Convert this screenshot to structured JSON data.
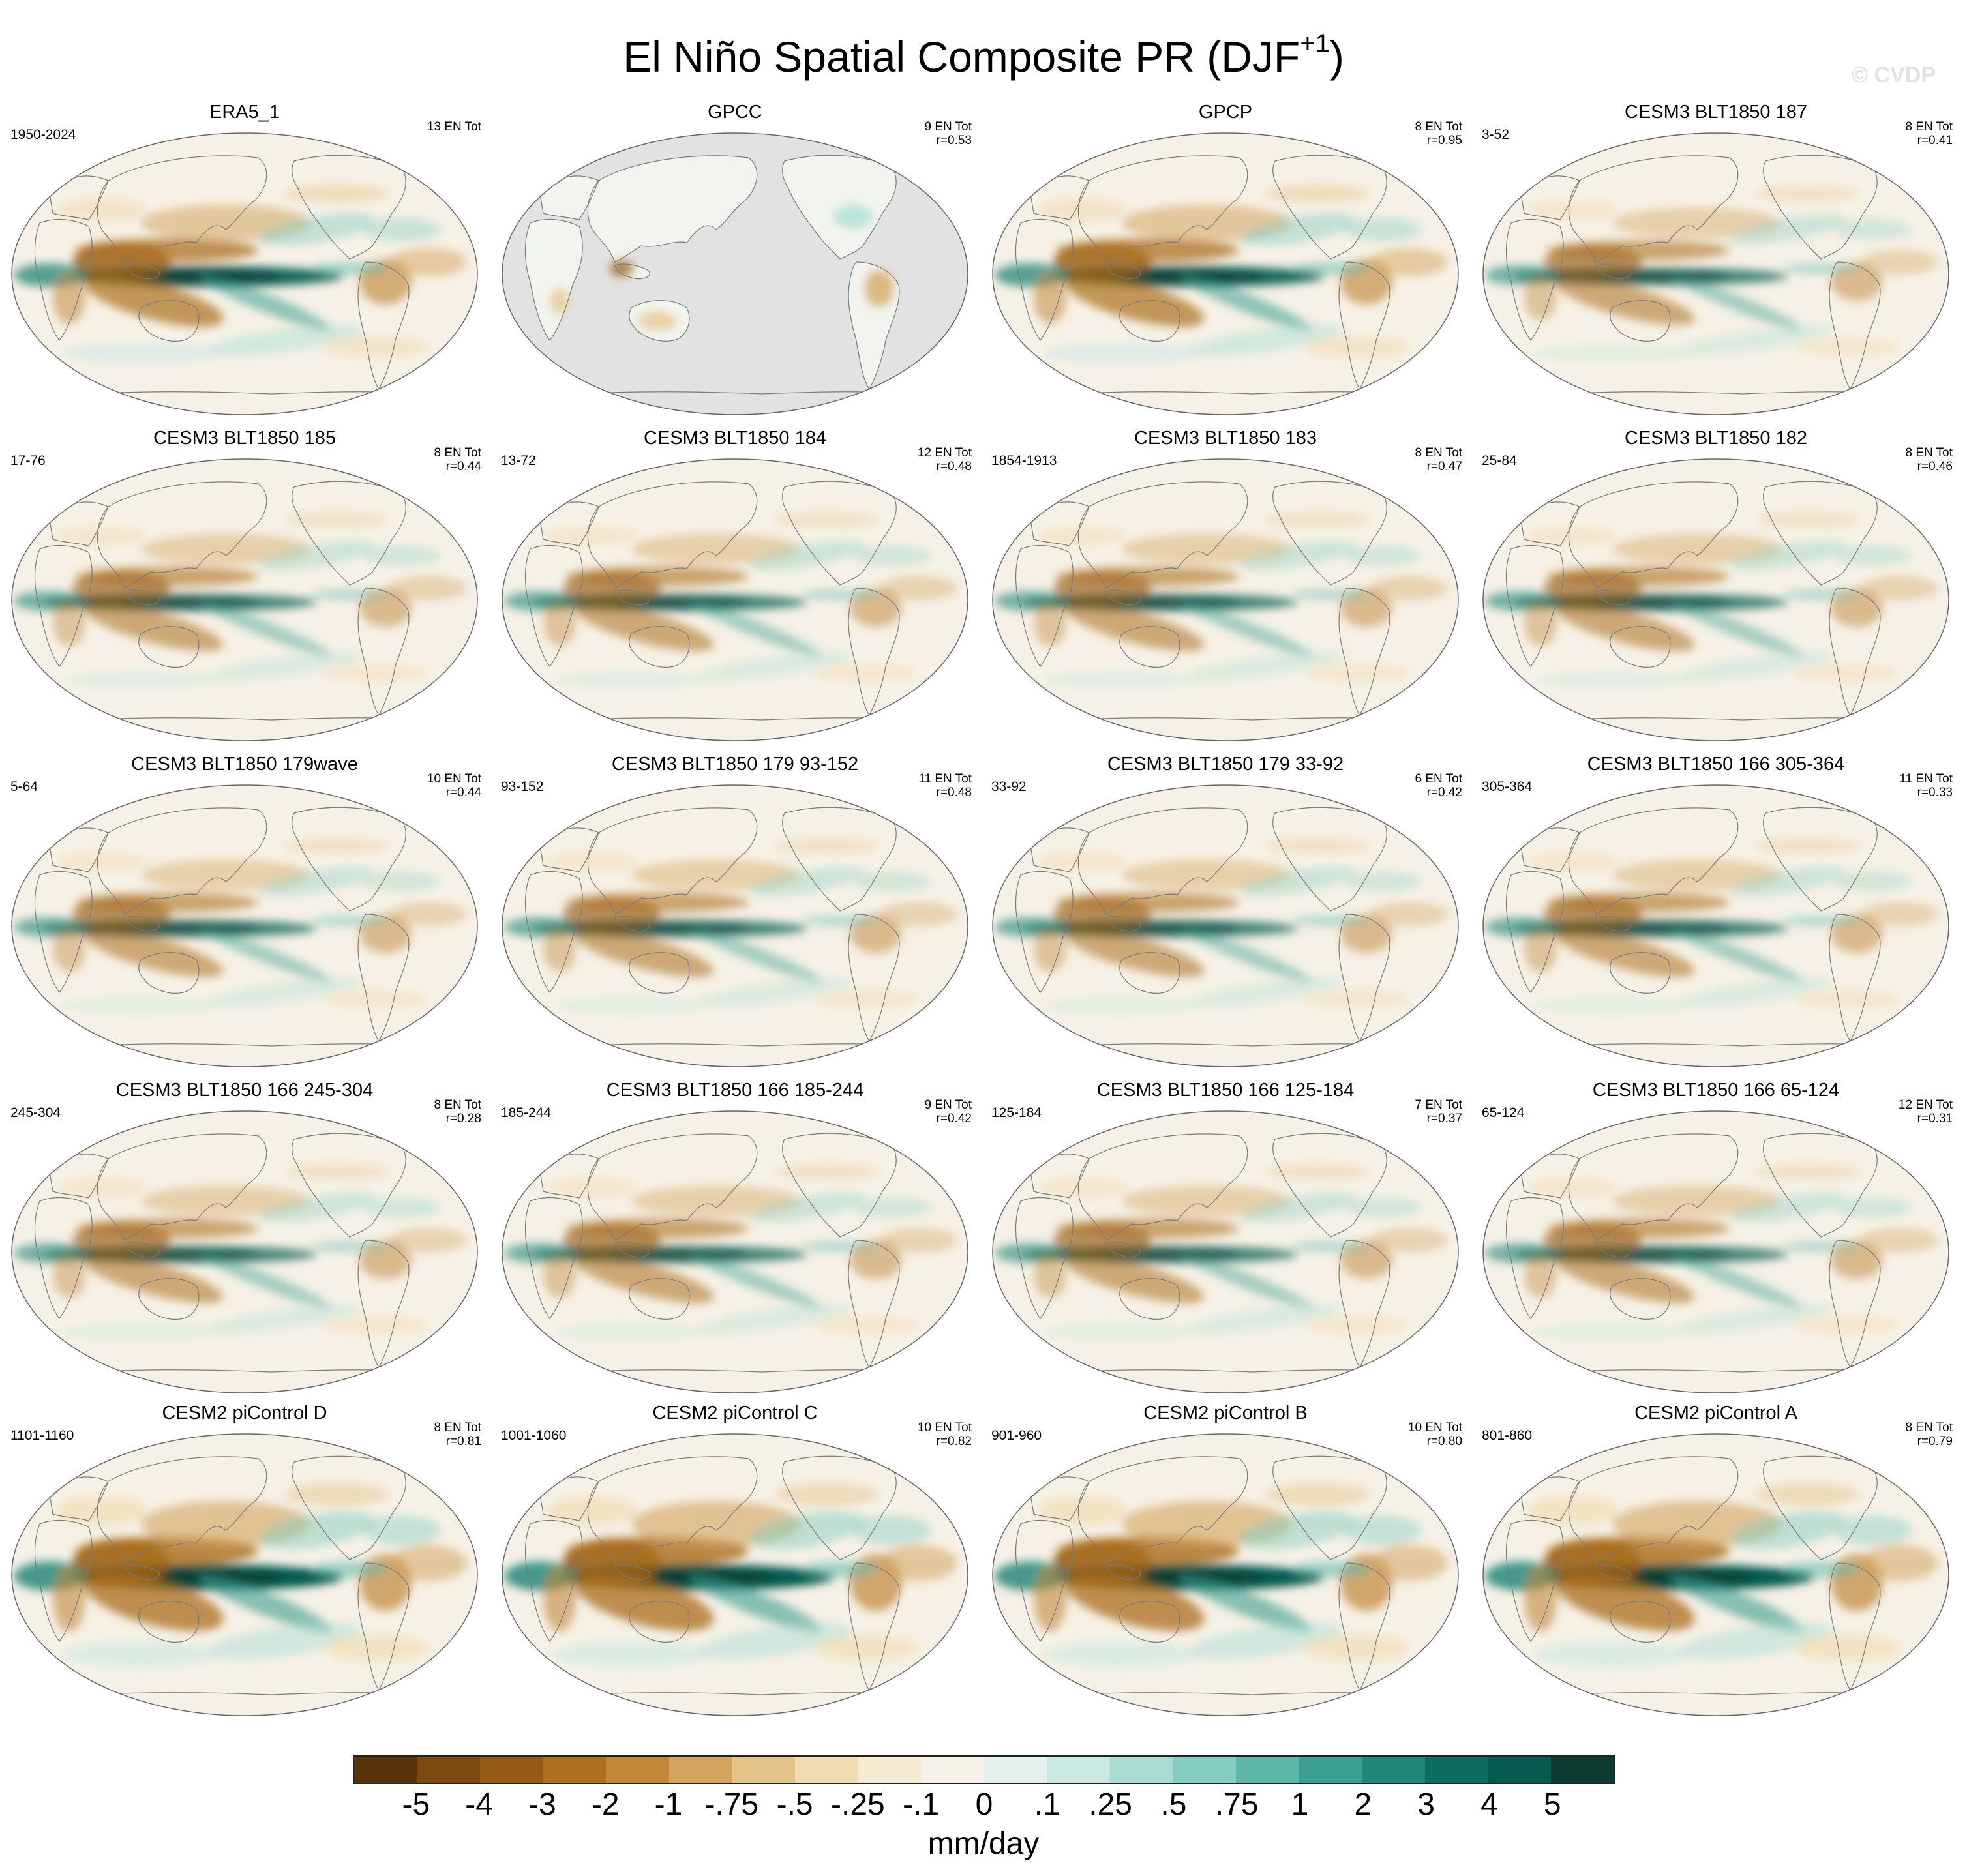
{
  "figure": {
    "title": "El Niño Spatial Composite PR (DJF",
    "title_superscript": "+1",
    "title_close": ")",
    "watermark": "© CVDP"
  },
  "panels": [
    {
      "name": "ERA5_1",
      "period": "1950-2024",
      "count": "13 EN Tot",
      "corr": "",
      "pattern": "obs",
      "land_only": false
    },
    {
      "name": "GPCC",
      "period": "",
      "count": "9 EN Tot",
      "corr": "r=0.53",
      "pattern": "obs",
      "land_only": true
    },
    {
      "name": "GPCP",
      "period": "",
      "count": "8 EN Tot",
      "corr": "r=0.95",
      "pattern": "obs",
      "land_only": false
    },
    {
      "name": "CESM3 BLT1850 187",
      "period": "3-52",
      "count": "8 EN Tot",
      "corr": "r=0.41",
      "pattern": "weak",
      "land_only": false
    },
    {
      "name": "CESM3 BLT1850 185",
      "period": "17-76",
      "count": "8 EN Tot",
      "corr": "r=0.44",
      "pattern": "weak",
      "land_only": false
    },
    {
      "name": "CESM3 BLT1850 184",
      "period": "13-72",
      "count": "12 EN Tot",
      "corr": "r=0.48",
      "pattern": "weak",
      "land_only": false
    },
    {
      "name": "CESM3 BLT1850 183",
      "period": "1854-1913",
      "count": "8 EN Tot",
      "corr": "r=0.47",
      "pattern": "weak",
      "land_only": false
    },
    {
      "name": "CESM3 BLT1850 182",
      "period": "25-84",
      "count": "8 EN Tot",
      "corr": "r=0.46",
      "pattern": "weak",
      "land_only": false
    },
    {
      "name": "CESM3 BLT1850 179wave",
      "period": "5-64",
      "count": "10 EN Tot",
      "corr": "r=0.44",
      "pattern": "weak",
      "land_only": false
    },
    {
      "name": "CESM3 BLT1850 179 93-152",
      "period": "93-152",
      "count": "11 EN Tot",
      "corr": "r=0.48",
      "pattern": "weak",
      "land_only": false
    },
    {
      "name": "CESM3 BLT1850 179 33-92",
      "period": "33-92",
      "count": "6 EN Tot",
      "corr": "r=0.42",
      "pattern": "weak",
      "land_only": false
    },
    {
      "name": "CESM3 BLT1850 166 305-364",
      "period": "305-364",
      "count": "11 EN Tot",
      "corr": "r=0.33",
      "pattern": "weak",
      "land_only": false
    },
    {
      "name": "CESM3 BLT1850 166 245-304",
      "period": "245-304",
      "count": "8 EN Tot",
      "corr": "r=0.28",
      "pattern": "weak",
      "land_only": false
    },
    {
      "name": "CESM3 BLT1850 166 185-244",
      "period": "185-244",
      "count": "9 EN Tot",
      "corr": "r=0.42",
      "pattern": "weak",
      "land_only": false
    },
    {
      "name": "CESM3 BLT1850 166 125-184",
      "period": "125-184",
      "count": "7 EN Tot",
      "corr": "r=0.37",
      "pattern": "weak",
      "land_only": false
    },
    {
      "name": "CESM3 BLT1850 166 65-124",
      "period": "65-124",
      "count": "12 EN Tot",
      "corr": "r=0.31",
      "pattern": "weak",
      "land_only": false
    },
    {
      "name": "CESM2 piControl D",
      "period": "1101-1160",
      "count": "8 EN Tot",
      "corr": "r=0.81",
      "pattern": "strong",
      "land_only": false
    },
    {
      "name": "CESM2 piControl C",
      "period": "1001-1060",
      "count": "10 EN Tot",
      "corr": "r=0.82",
      "pattern": "strong",
      "land_only": false
    },
    {
      "name": "CESM2 piControl B",
      "period": "901-960",
      "count": "10 EN Tot",
      "corr": "r=0.80",
      "pattern": "strong",
      "land_only": false
    },
    {
      "name": "CESM2 piControl A",
      "period": "801-860",
      "count": "8 EN Tot",
      "corr": "r=0.79",
      "pattern": "strong",
      "land_only": false
    }
  ],
  "colorbar": {
    "colors": [
      "#5a3409",
      "#7c4a0f",
      "#955b14",
      "#ad701f",
      "#c2883a",
      "#d3a45e",
      "#e4c489",
      "#f0dcb0",
      "#f6ebd0",
      "#f6f1e6",
      "#e6f2ef",
      "#cae8e2",
      "#a9ddd3",
      "#85cdbf",
      "#5db8a9",
      "#3a9f90",
      "#1f8678",
      "#0f6c60",
      "#065a4f",
      "#0b3a31"
    ],
    "labels": [
      "-5",
      "-4",
      "-3",
      "-2",
      "-1",
      "-.75",
      "-.5",
      "-.25",
      "-.1",
      "0",
      ".1",
      ".25",
      ".5",
      ".75",
      "1",
      "2",
      "3",
      "4",
      "5"
    ],
    "unit": "mm/day"
  }
}
